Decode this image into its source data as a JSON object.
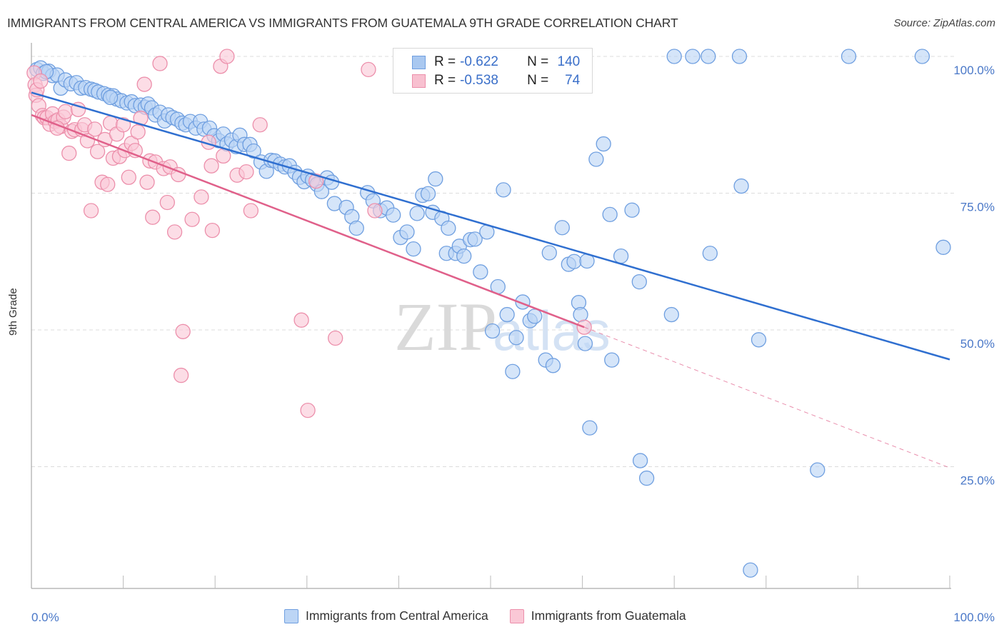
{
  "title": "IMMIGRANTS FROM CENTRAL AMERICA VS IMMIGRANTS FROM GUATEMALA 9TH GRADE CORRELATION CHART",
  "source": "Source: ZipAtlas.com",
  "watermark": {
    "zip": "ZIP",
    "atlas": "atlas"
  },
  "legend_top": [
    {
      "r_label": "R =",
      "r_value": "-0.622",
      "n_label": "N =",
      "n_value": "140",
      "color": "#a9c8f0",
      "border": "#6f9fe0"
    },
    {
      "r_label": "R =",
      "r_value": "-0.538",
      "n_label": "N =",
      "n_value": "74",
      "color": "#f8c0d0",
      "border": "#ec8fab"
    }
  ],
  "legend_bottom": [
    {
      "label": "Immigrants from Central America",
      "color": "#bcd5f5",
      "border": "#6f9fe0"
    },
    {
      "label": "Immigrants from Guatemala",
      "color": "#fac8d6",
      "border": "#ec8fab"
    }
  ],
  "chart_data": {
    "type": "scatter",
    "title": "IMMIGRANTS FROM CENTRAL AMERICA VS IMMIGRANTS FROM GUATEMALA 9TH GRADE CORRELATION CHART",
    "xlabel": "",
    "ylabel": "9th Grade",
    "xlim": [
      0,
      100
    ],
    "ylim": [
      0,
      100
    ],
    "x_tick_labels": [
      "0.0%",
      "100.0%"
    ],
    "y_ticks": [
      25,
      50,
      75,
      100
    ],
    "y_tick_labels": [
      "25.0%",
      "50.0%",
      "75.0%",
      "100.0%"
    ],
    "grid": "horizontal-dashed",
    "legend": "top-center",
    "series": [
      {
        "name": "Immigrants from Central America",
        "color": "#6f9fe0",
        "fill": "#bcd5f5",
        "R": -0.622,
        "N": 140,
        "trend": {
          "x": [
            0,
            100
          ],
          "y": [
            93.4,
            44.6
          ],
          "color": "#2f6fd0"
        },
        "points": [
          [
            0.6,
            97.6
          ],
          [
            1.0,
            97.9
          ],
          [
            1.3,
            96.9
          ],
          [
            1.9,
            97.3
          ],
          [
            2.3,
            96.5
          ],
          [
            2.8,
            96.6
          ],
          [
            3.2,
            94.2
          ],
          [
            3.7,
            95.7
          ],
          [
            4.3,
            95.0
          ],
          [
            4.9,
            95.2
          ],
          [
            5.4,
            94.2
          ],
          [
            5.9,
            94.3
          ],
          [
            6.5,
            94.0
          ],
          [
            6.9,
            93.8
          ],
          [
            7.3,
            93.5
          ],
          [
            7.9,
            93.2
          ],
          [
            8.4,
            92.9
          ],
          [
            8.9,
            92.8
          ],
          [
            9.3,
            92.2
          ],
          [
            9.8,
            91.9
          ],
          [
            10.4,
            91.5
          ],
          [
            10.9,
            91.7
          ],
          [
            11.3,
            91.0
          ],
          [
            11.9,
            91.1
          ],
          [
            12.4,
            90.7
          ],
          [
            12.7,
            91.3
          ],
          [
            13.1,
            90.6
          ],
          [
            13.5,
            89.3
          ],
          [
            14.0,
            89.8
          ],
          [
            14.5,
            88.2
          ],
          [
            14.9,
            89.3
          ],
          [
            15.4,
            88.8
          ],
          [
            15.9,
            88.5
          ],
          [
            16.4,
            87.8
          ],
          [
            16.8,
            87.5
          ],
          [
            17.3,
            88.1
          ],
          [
            17.9,
            86.9
          ],
          [
            18.4,
            88.1
          ],
          [
            18.8,
            86.7
          ],
          [
            19.4,
            86.9
          ],
          [
            19.9,
            85.5
          ],
          [
            20.4,
            84.6
          ],
          [
            20.9,
            85.8
          ],
          [
            21.3,
            84.0
          ],
          [
            21.8,
            84.7
          ],
          [
            22.3,
            83.5
          ],
          [
            22.7,
            85.6
          ],
          [
            23.2,
            83.9
          ],
          [
            23.8,
            83.9
          ],
          [
            24.2,
            82.7
          ],
          [
            25.0,
            80.7
          ],
          [
            25.6,
            79.0
          ],
          [
            26.1,
            81.0
          ],
          [
            26.5,
            80.9
          ],
          [
            27.1,
            80.3
          ],
          [
            27.6,
            79.8
          ],
          [
            28.1,
            80.0
          ],
          [
            28.7,
            78.8
          ],
          [
            29.2,
            77.9
          ],
          [
            29.7,
            77.1
          ],
          [
            30.1,
            78.1
          ],
          [
            30.6,
            77.4
          ],
          [
            31.1,
            76.6
          ],
          [
            31.6,
            75.3
          ],
          [
            32.2,
            77.8
          ],
          [
            32.7,
            77.0
          ],
          [
            33.0,
            73.1
          ],
          [
            34.3,
            72.4
          ],
          [
            34.9,
            70.7
          ],
          [
            35.4,
            68.6
          ],
          [
            36.6,
            75.1
          ],
          [
            37.2,
            73.6
          ],
          [
            38.0,
            71.8
          ],
          [
            38.7,
            72.3
          ],
          [
            39.4,
            71.0
          ],
          [
            40.2,
            66.9
          ],
          [
            40.9,
            67.9
          ],
          [
            41.6,
            64.8
          ],
          [
            42.0,
            71.3
          ],
          [
            42.6,
            74.6
          ],
          [
            43.2,
            74.9
          ],
          [
            43.7,
            71.5
          ],
          [
            44.0,
            77.6
          ],
          [
            44.7,
            70.4
          ],
          [
            45.2,
            64.0
          ],
          [
            45.4,
            68.6
          ],
          [
            46.2,
            64.0
          ],
          [
            46.6,
            65.3
          ],
          [
            47.1,
            63.5
          ],
          [
            47.8,
            66.5
          ],
          [
            48.3,
            66.6
          ],
          [
            48.9,
            60.6
          ],
          [
            49.6,
            67.9
          ],
          [
            50.2,
            49.8
          ],
          [
            50.8,
            57.9
          ],
          [
            51.4,
            75.6
          ],
          [
            51.8,
            52.8
          ],
          [
            52.4,
            42.4
          ],
          [
            52.8,
            48.6
          ],
          [
            53.5,
            55.1
          ],
          [
            54.3,
            51.7
          ],
          [
            54.8,
            52.5
          ],
          [
            56.0,
            44.5
          ],
          [
            56.4,
            64.1
          ],
          [
            56.8,
            43.5
          ],
          [
            57.8,
            68.7
          ],
          [
            58.5,
            62.0
          ],
          [
            59.1,
            62.5
          ],
          [
            59.6,
            55.0
          ],
          [
            59.8,
            52.8
          ],
          [
            60.3,
            47.5
          ],
          [
            60.5,
            62.6
          ],
          [
            60.8,
            32.1
          ],
          [
            61.5,
            81.2
          ],
          [
            62.3,
            84.0
          ],
          [
            63.0,
            71.1
          ],
          [
            63.2,
            44.5
          ],
          [
            64.2,
            63.5
          ],
          [
            65.4,
            71.9
          ],
          [
            66.2,
            58.8
          ],
          [
            66.3,
            26.1
          ],
          [
            67.0,
            22.9
          ],
          [
            69.7,
            52.8
          ],
          [
            70.0,
            100.0
          ],
          [
            72.0,
            100.0
          ],
          [
            73.7,
            100.0
          ],
          [
            73.9,
            64.0
          ],
          [
            77.1,
            100.0
          ],
          [
            77.3,
            76.3
          ],
          [
            78.3,
            6.1
          ],
          [
            79.2,
            48.2
          ],
          [
            85.6,
            24.4
          ],
          [
            89.0,
            100.0
          ],
          [
            97.0,
            100.0
          ],
          [
            99.3,
            65.1
          ],
          [
            47.2,
            100.0
          ],
          [
            52.5,
            100.0
          ],
          [
            54.7,
            100.0
          ],
          [
            1.6,
            97.2
          ],
          [
            8.6,
            92.5
          ]
        ]
      },
      {
        "name": "Immigrants from Guatemala",
        "color": "#ec8fab",
        "fill": "#fac8d6",
        "R": -0.538,
        "N": 74,
        "trend": {
          "x": [
            0,
            60.2
          ],
          "y": [
            89.3,
            50.5
          ],
          "dashed_to": {
            "x": 100,
            "y": 24.8
          },
          "color": "#e0608a"
        },
        "points": [
          [
            0.3,
            97.0
          ],
          [
            0.4,
            94.8
          ],
          [
            0.5,
            92.9
          ],
          [
            0.6,
            93.9
          ],
          [
            0.8,
            91.0
          ],
          [
            1.2,
            89.2
          ],
          [
            1.4,
            88.8
          ],
          [
            1.7,
            88.8
          ],
          [
            2.0,
            87.6
          ],
          [
            2.3,
            89.5
          ],
          [
            2.6,
            88.1
          ],
          [
            2.9,
            88.4
          ],
          [
            3.2,
            87.2
          ],
          [
            3.5,
            88.9
          ],
          [
            3.7,
            89.9
          ],
          [
            4.1,
            82.3
          ],
          [
            4.4,
            86.3
          ],
          [
            4.7,
            86.6
          ],
          [
            5.1,
            90.3
          ],
          [
            5.5,
            86.6
          ],
          [
            5.8,
            87.5
          ],
          [
            6.1,
            84.6
          ],
          [
            6.5,
            71.8
          ],
          [
            6.9,
            86.7
          ],
          [
            7.2,
            82.6
          ],
          [
            7.7,
            77.0
          ],
          [
            8.0,
            84.8
          ],
          [
            8.3,
            76.6
          ],
          [
            8.6,
            87.8
          ],
          [
            8.9,
            81.4
          ],
          [
            9.3,
            85.8
          ],
          [
            9.6,
            81.7
          ],
          [
            10.0,
            87.5
          ],
          [
            10.2,
            82.8
          ],
          [
            10.6,
            77.9
          ],
          [
            10.9,
            84.1
          ],
          [
            11.3,
            82.8
          ],
          [
            11.6,
            86.2
          ],
          [
            11.9,
            88.7
          ],
          [
            12.3,
            94.9
          ],
          [
            12.6,
            77.0
          ],
          [
            12.9,
            80.9
          ],
          [
            13.2,
            70.6
          ],
          [
            13.5,
            80.7
          ],
          [
            14.0,
            98.7
          ],
          [
            14.4,
            79.5
          ],
          [
            14.8,
            73.3
          ],
          [
            15.1,
            79.8
          ],
          [
            15.6,
            67.9
          ],
          [
            16.0,
            78.4
          ],
          [
            16.5,
            49.7
          ],
          [
            16.3,
            41.7
          ],
          [
            17.5,
            70.2
          ],
          [
            18.5,
            74.3
          ],
          [
            19.3,
            84.3
          ],
          [
            19.6,
            80.0
          ],
          [
            19.7,
            68.2
          ],
          [
            20.6,
            98.2
          ],
          [
            20.9,
            81.8
          ],
          [
            21.3,
            100.0
          ],
          [
            22.4,
            78.3
          ],
          [
            23.4,
            78.9
          ],
          [
            23.9,
            71.8
          ],
          [
            24.9,
            87.5
          ],
          [
            29.4,
            51.8
          ],
          [
            30.1,
            35.3
          ],
          [
            31.0,
            77.2
          ],
          [
            33.1,
            48.5
          ],
          [
            36.7,
            97.6
          ],
          [
            37.4,
            71.8
          ],
          [
            43.3,
            100.0
          ],
          [
            60.2,
            50.5
          ],
          [
            1.0,
            95.5
          ],
          [
            2.8,
            86.9
          ]
        ]
      }
    ]
  }
}
